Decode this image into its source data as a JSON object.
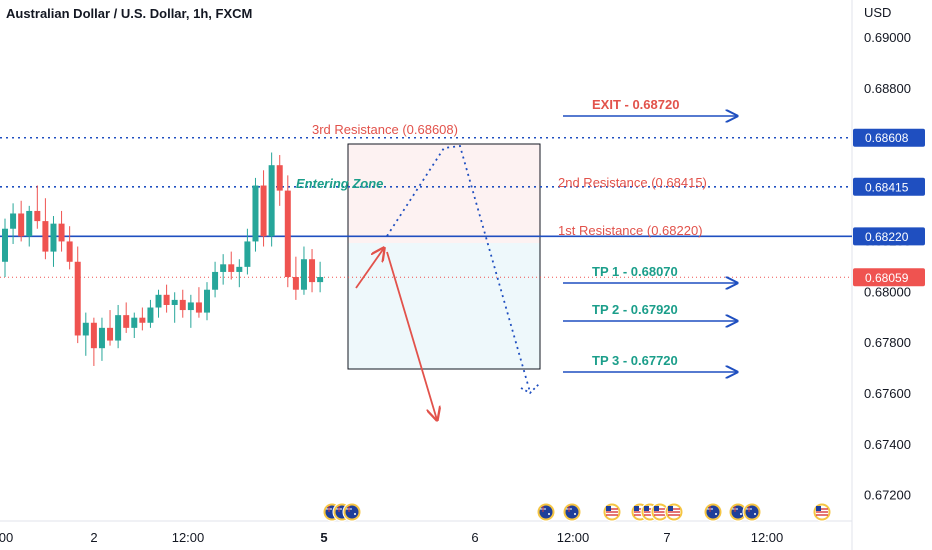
{
  "chart_title": "Australian Dollar / U.S. Dollar, 1h, FXCM",
  "colors": {
    "up": "#26a69a",
    "down": "#ef5350",
    "blue": "#1f4fc0",
    "red": "#e2524b",
    "teal": "#1b9e8a",
    "grid_border": "#e0e3eb",
    "text": "#131722"
  },
  "chart_data": {
    "type": "candlestick",
    "y_unit": "USD",
    "ylim": [
      0.671,
      0.6915
    ],
    "y_ticks": [
      "0.69000",
      "0.68800",
      "0.68600",
      "0.68400",
      "0.68200",
      "0.68000",
      "0.67800",
      "0.67600",
      "0.67400",
      "0.67200"
    ],
    "y_tick_values": [
      0.69,
      0.688,
      0.686,
      0.684,
      0.682,
      0.68,
      0.678,
      0.676,
      0.674,
      0.672
    ],
    "x_ticks": [
      "00",
      "2",
      "12:00",
      "5",
      "6",
      "12:00",
      "7",
      "12:00"
    ],
    "x_tick_bold": [
      false,
      false,
      false,
      true,
      false,
      false,
      false,
      false
    ],
    "candles": [
      [
        0.6812,
        0.6829,
        0.6806,
        0.6825
      ],
      [
        0.6825,
        0.6835,
        0.6819,
        0.6831
      ],
      [
        0.6831,
        0.6836,
        0.682,
        0.6822
      ],
      [
        0.6822,
        0.6834,
        0.6818,
        0.6832
      ],
      [
        0.6832,
        0.6842,
        0.6825,
        0.6828
      ],
      [
        0.6828,
        0.6837,
        0.6813,
        0.6816
      ],
      [
        0.6816,
        0.683,
        0.681,
        0.6827
      ],
      [
        0.6827,
        0.6832,
        0.6816,
        0.682
      ],
      [
        0.682,
        0.6826,
        0.6809,
        0.6812
      ],
      [
        0.6812,
        0.6818,
        0.678,
        0.6783
      ],
      [
        0.6783,
        0.6792,
        0.6775,
        0.6788
      ],
      [
        0.6788,
        0.679,
        0.6771,
        0.6778
      ],
      [
        0.6778,
        0.679,
        0.6773,
        0.6786
      ],
      [
        0.6786,
        0.6793,
        0.6779,
        0.6781
      ],
      [
        0.6781,
        0.6795,
        0.6778,
        0.6791
      ],
      [
        0.6791,
        0.6796,
        0.6784,
        0.6786
      ],
      [
        0.6786,
        0.6792,
        0.6782,
        0.679
      ],
      [
        0.679,
        0.6794,
        0.6785,
        0.6788
      ],
      [
        0.6788,
        0.6797,
        0.6786,
        0.6794
      ],
      [
        0.6794,
        0.6801,
        0.679,
        0.6799
      ],
      [
        0.6799,
        0.6803,
        0.6792,
        0.6795
      ],
      [
        0.6795,
        0.68,
        0.6788,
        0.6797
      ],
      [
        0.6797,
        0.6801,
        0.679,
        0.6793
      ],
      [
        0.6793,
        0.6799,
        0.6786,
        0.6796
      ],
      [
        0.6796,
        0.6802,
        0.679,
        0.6792
      ],
      [
        0.6792,
        0.6804,
        0.6789,
        0.6801
      ],
      [
        0.6801,
        0.6812,
        0.6798,
        0.6808
      ],
      [
        0.6808,
        0.6815,
        0.6803,
        0.6811
      ],
      [
        0.6811,
        0.6816,
        0.6805,
        0.6808
      ],
      [
        0.6808,
        0.6813,
        0.6802,
        0.681
      ],
      [
        0.681,
        0.6825,
        0.6807,
        0.682
      ],
      [
        0.682,
        0.6845,
        0.6816,
        0.6842
      ],
      [
        0.6842,
        0.6848,
        0.6818,
        0.6822
      ],
      [
        0.6822,
        0.6855,
        0.6818,
        0.685
      ],
      [
        0.685,
        0.6854,
        0.6834,
        0.684
      ],
      [
        0.684,
        0.6846,
        0.6802,
        0.6806
      ],
      [
        0.6806,
        0.6814,
        0.6797,
        0.6801
      ],
      [
        0.6801,
        0.6818,
        0.6799,
        0.6813
      ],
      [
        0.6813,
        0.6817,
        0.68,
        0.6804
      ],
      [
        0.6804,
        0.6812,
        0.68,
        0.6806
      ]
    ],
    "levels": [
      {
        "value": 0.68608,
        "label": "0.68608",
        "style": "dotted"
      },
      {
        "value": 0.68415,
        "label": "0.68415",
        "style": "dotted"
      },
      {
        "value": 0.6822,
        "label": "0.68220",
        "style": "solid"
      }
    ],
    "current_price": {
      "value": 0.68059,
      "label": "0.68059"
    },
    "annotations": {
      "resistance_3": "3rd Resistance (0.68608)",
      "resistance_2": "2nd Resistance (0.68415)",
      "resistance_1": "1st Resistance (0.68220)",
      "exit": "EXIT - 0.68720",
      "tp1": "TP 1 - 0.68070",
      "tp2": "TP 2 - 0.67920",
      "tp3": "TP 3 - 0.67720",
      "entering_zone": "Entering Zone"
    },
    "event_flags": [
      "AU",
      "AU",
      "AU",
      "AU",
      "AU",
      "US",
      "US",
      "US",
      "US",
      "US",
      "AU",
      "AU",
      "AU",
      "US"
    ]
  }
}
